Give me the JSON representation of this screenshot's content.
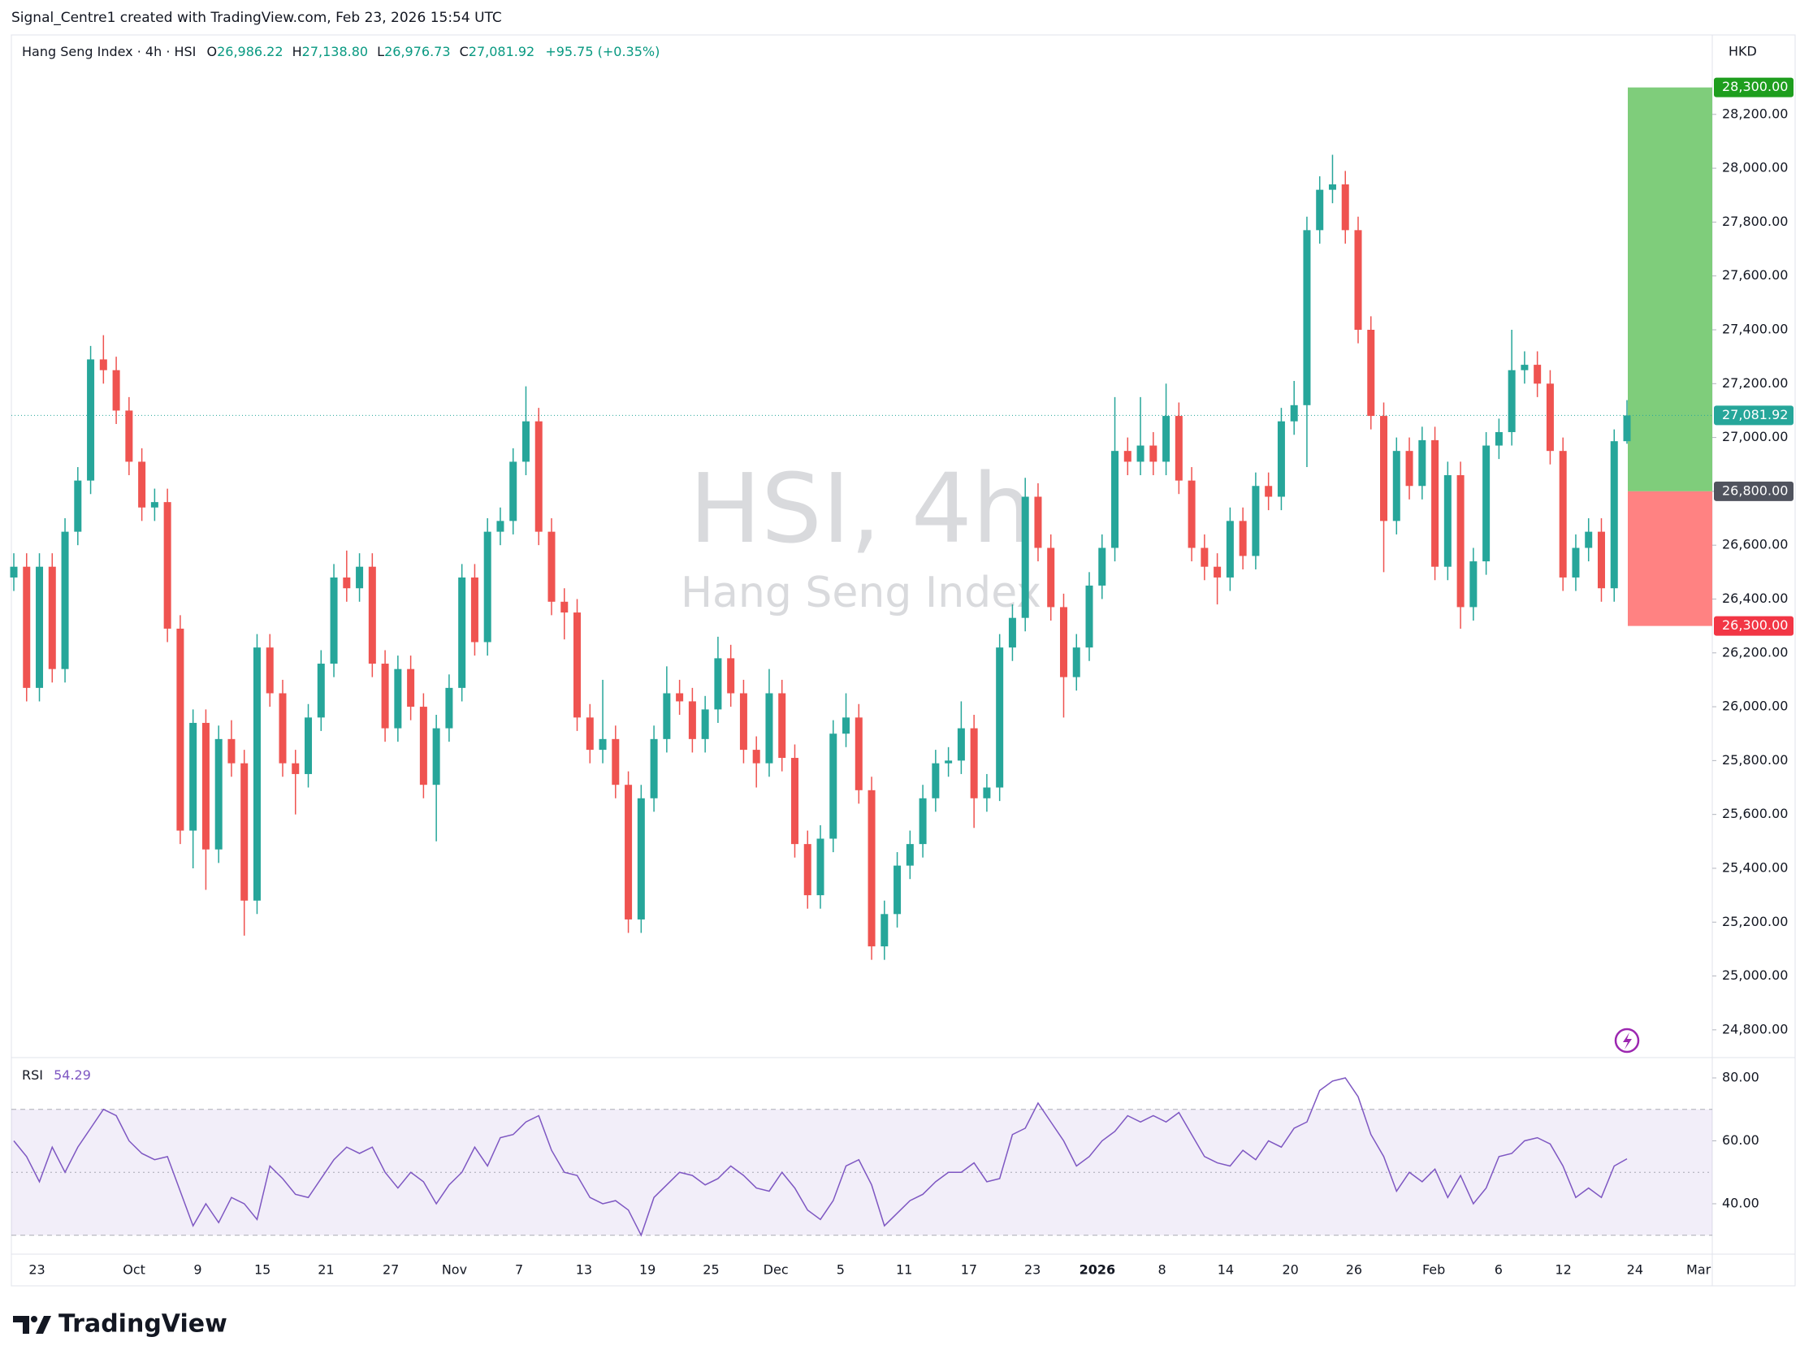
{
  "header": {
    "credit": "Signal_Centre1 created with TradingView.com, Feb 23, 2026 15:54 UTC",
    "footer_logo": "TradingView"
  },
  "chart_data": {
    "type": "candlestick",
    "symbol": "Hang Seng Index · 4h · HSI",
    "legend": {
      "o_prefix": "O",
      "open": "26,986.22",
      "h_prefix": "H",
      "high": "27,138.80",
      "l_prefix": "L",
      "low": "26,976.73",
      "c_prefix": "C",
      "close": "27,081.92",
      "change": "+95.75 (+0.35%)"
    },
    "watermark": "HSI, 4h",
    "watermark_sub": "Hang Seng Index",
    "currency": "HKD",
    "up_color": "#26a69a",
    "down_color": "#ef5350",
    "ylim": [
      24703,
      28483
    ],
    "yticks": [
      {
        "value": 24800,
        "label": "24,800.00"
      },
      {
        "value": 25000,
        "label": "25,000.00"
      },
      {
        "value": 25200,
        "label": "25,200.00"
      },
      {
        "value": 25400,
        "label": "25,400.00"
      },
      {
        "value": 25600,
        "label": "25,600.00"
      },
      {
        "value": 25800,
        "label": "25,800.00"
      },
      {
        "value": 26000,
        "label": "26,000.00"
      },
      {
        "value": 26200,
        "label": "26,200.00"
      },
      {
        "value": 26400,
        "label": "26,400.00"
      },
      {
        "value": 26600,
        "label": "26,600.00"
      },
      {
        "value": 26800,
        "label": "26,800.00"
      },
      {
        "value": 27000,
        "label": "27,000.00"
      },
      {
        "value": 27200,
        "label": "27,200.00"
      },
      {
        "value": 27400,
        "label": "27,400.00"
      },
      {
        "value": 27600,
        "label": "27,600.00"
      },
      {
        "value": 27800,
        "label": "27,800.00"
      },
      {
        "value": 28000,
        "label": "28,000.00"
      },
      {
        "value": 28200,
        "label": "28,200.00"
      }
    ],
    "xticks": [
      "23",
      "Oct",
      "9",
      "15",
      "21",
      "27",
      "Nov",
      "7",
      "13",
      "19",
      "25",
      "Dec",
      "5",
      "11",
      "17",
      "23",
      "2026",
      "8",
      "14",
      "20",
      "26",
      "Feb",
      "6",
      "12",
      "24",
      "Mar"
    ],
    "price_line": {
      "value": 27081.92,
      "label": "27,081.92"
    },
    "position": {
      "target": {
        "value": 28300,
        "label": "28,300.00",
        "color": "#7fcd7b"
      },
      "entry": {
        "value": 26800,
        "label": "26,800.00"
      },
      "stop": {
        "value": 26300,
        "label": "26,300.00",
        "color": "#ff8282"
      }
    },
    "candles": [
      [
        26480,
        26570,
        26430,
        26520
      ],
      [
        26520,
        26570,
        26020,
        26070
      ],
      [
        26070,
        26570,
        26020,
        26520
      ],
      [
        26520,
        26570,
        26090,
        26140
      ],
      [
        26140,
        26700,
        26090,
        26650
      ],
      [
        26650,
        26890,
        26600,
        26840
      ],
      [
        26840,
        27340,
        26790,
        27290
      ],
      [
        27290,
        27380,
        27200,
        27250
      ],
      [
        27250,
        27300,
        27050,
        27100
      ],
      [
        27100,
        27150,
        26860,
        26910
      ],
      [
        26910,
        26960,
        26690,
        26740
      ],
      [
        26740,
        26810,
        26690,
        26760
      ],
      [
        26760,
        26810,
        26240,
        26290
      ],
      [
        26290,
        26340,
        25490,
        25540
      ],
      [
        25540,
        25990,
        25400,
        25940
      ],
      [
        25940,
        25990,
        25320,
        25470
      ],
      [
        25470,
        25930,
        25420,
        25880
      ],
      [
        25880,
        25950,
        25740,
        25790
      ],
      [
        25790,
        25840,
        25150,
        25280
      ],
      [
        25280,
        26270,
        25230,
        26220
      ],
      [
        26220,
        26270,
        26000,
        26050
      ],
      [
        26050,
        26100,
        25740,
        25790
      ],
      [
        25790,
        25840,
        25600,
        25750
      ],
      [
        25750,
        26010,
        25700,
        25960
      ],
      [
        25960,
        26210,
        25910,
        26160
      ],
      [
        26160,
        26530,
        26110,
        26480
      ],
      [
        26480,
        26580,
        26390,
        26440
      ],
      [
        26440,
        26570,
        26390,
        26520
      ],
      [
        26520,
        26570,
        26110,
        26160
      ],
      [
        26160,
        26210,
        25870,
        25920
      ],
      [
        25920,
        26190,
        25870,
        26140
      ],
      [
        26140,
        26190,
        25950,
        26000
      ],
      [
        26000,
        26050,
        25660,
        25710
      ],
      [
        25710,
        25970,
        25500,
        25920
      ],
      [
        25920,
        26120,
        25870,
        26070
      ],
      [
        26070,
        26530,
        26020,
        26480
      ],
      [
        26480,
        26530,
        26190,
        26240
      ],
      [
        26240,
        26700,
        26190,
        26650
      ],
      [
        26650,
        26740,
        26600,
        26690
      ],
      [
        26690,
        26960,
        26640,
        26910
      ],
      [
        26910,
        27190,
        26860,
        27060
      ],
      [
        27060,
        27110,
        26600,
        26650
      ],
      [
        26650,
        26700,
        26340,
        26390
      ],
      [
        26390,
        26440,
        26250,
        26350
      ],
      [
        26350,
        26400,
        25910,
        25960
      ],
      [
        25960,
        26010,
        25790,
        25840
      ],
      [
        25840,
        26100,
        25790,
        25880
      ],
      [
        25880,
        25930,
        25660,
        25710
      ],
      [
        25710,
        25760,
        25160,
        25210
      ],
      [
        25210,
        25710,
        25160,
        25660
      ],
      [
        25660,
        25930,
        25610,
        25880
      ],
      [
        25880,
        26150,
        25830,
        26050
      ],
      [
        26050,
        26100,
        25970,
        26020
      ],
      [
        26020,
        26070,
        25830,
        25880
      ],
      [
        25880,
        26040,
        25830,
        25990
      ],
      [
        25990,
        26260,
        25940,
        26180
      ],
      [
        26180,
        26230,
        26000,
        26050
      ],
      [
        26050,
        26100,
        25790,
        25840
      ],
      [
        25840,
        25890,
        25700,
        25790
      ],
      [
        25790,
        26140,
        25740,
        26050
      ],
      [
        26050,
        26100,
        25760,
        25810
      ],
      [
        25810,
        25860,
        25440,
        25490
      ],
      [
        25490,
        25540,
        25250,
        25300
      ],
      [
        25300,
        25560,
        25250,
        25510
      ],
      [
        25510,
        25950,
        25460,
        25900
      ],
      [
        25900,
        26050,
        25850,
        25960
      ],
      [
        25960,
        26010,
        25640,
        25690
      ],
      [
        25690,
        25740,
        25060,
        25110
      ],
      [
        25110,
        25280,
        25060,
        25230
      ],
      [
        25230,
        25460,
        25180,
        25410
      ],
      [
        25410,
        25540,
        25360,
        25490
      ],
      [
        25490,
        25710,
        25440,
        25660
      ],
      [
        25660,
        25840,
        25610,
        25790
      ],
      [
        25790,
        25850,
        25740,
        25800
      ],
      [
        25800,
        26020,
        25750,
        25920
      ],
      [
        25920,
        25970,
        25550,
        25660
      ],
      [
        25660,
        25750,
        25610,
        25700
      ],
      [
        25700,
        26270,
        25650,
        26220
      ],
      [
        26220,
        26380,
        26170,
        26330
      ],
      [
        26330,
        26850,
        26280,
        26780
      ],
      [
        26780,
        26830,
        26540,
        26590
      ],
      [
        26590,
        26640,
        26320,
        26370
      ],
      [
        26370,
        26420,
        25960,
        26110
      ],
      [
        26110,
        26270,
        26060,
        26220
      ],
      [
        26220,
        26500,
        26170,
        26450
      ],
      [
        26450,
        26640,
        26400,
        26590
      ],
      [
        26590,
        27150,
        26540,
        26950
      ],
      [
        26950,
        27000,
        26860,
        26910
      ],
      [
        26910,
        27150,
        26860,
        26970
      ],
      [
        26970,
        27020,
        26860,
        26910
      ],
      [
        26910,
        27200,
        26860,
        27080
      ],
      [
        27080,
        27130,
        26790,
        26840
      ],
      [
        26840,
        26890,
        26540,
        26590
      ],
      [
        26590,
        26640,
        26470,
        26520
      ],
      [
        26520,
        26570,
        26380,
        26480
      ],
      [
        26480,
        26740,
        26430,
        26690
      ],
      [
        26690,
        26740,
        26510,
        26560
      ],
      [
        26560,
        26870,
        26510,
        26820
      ],
      [
        26820,
        26870,
        26730,
        26780
      ],
      [
        26780,
        27110,
        26730,
        27060
      ],
      [
        27060,
        27210,
        27010,
        27120
      ],
      [
        27120,
        27820,
        26890,
        27770
      ],
      [
        27770,
        27970,
        27720,
        27920
      ],
      [
        27920,
        28050,
        27870,
        27940
      ],
      [
        27940,
        27990,
        27720,
        27770
      ],
      [
        27770,
        27820,
        27350,
        27400
      ],
      [
        27400,
        27450,
        27030,
        27080
      ],
      [
        27080,
        27130,
        26500,
        26690
      ],
      [
        26690,
        27000,
        26640,
        26950
      ],
      [
        26950,
        27000,
        26770,
        26820
      ],
      [
        26820,
        27040,
        26770,
        26990
      ],
      [
        26990,
        27040,
        26470,
        26520
      ],
      [
        26520,
        26910,
        26470,
        26860
      ],
      [
        26860,
        26910,
        26290,
        26370
      ],
      [
        26370,
        26590,
        26320,
        26540
      ],
      [
        26540,
        27020,
        26490,
        26970
      ],
      [
        26970,
        27070,
        26920,
        27020
      ],
      [
        27020,
        27400,
        26970,
        27250
      ],
      [
        27250,
        27320,
        27200,
        27270
      ],
      [
        27270,
        27320,
        27150,
        27200
      ],
      [
        27200,
        27250,
        26900,
        26950
      ],
      [
        26950,
        27000,
        26430,
        26480
      ],
      [
        26480,
        26640,
        26430,
        26590
      ],
      [
        26590,
        26700,
        26540,
        26650
      ],
      [
        26650,
        26700,
        26390,
        26440
      ],
      [
        26440,
        27030,
        26390,
        26986.17
      ],
      [
        26986.22,
        27138.8,
        26976.73,
        27081.92
      ]
    ],
    "rsi": {
      "name": "RSI",
      "value_label": "54.29",
      "color": "#7e57c2",
      "ylim": [
        24.5,
        86.2
      ],
      "yticks": [
        {
          "value": 40,
          "label": "40.00"
        },
        {
          "value": 60,
          "label": "60.00"
        },
        {
          "value": 80,
          "label": "80.00"
        }
      ],
      "bands": [
        70,
        50,
        30
      ],
      "values": [
        60,
        55,
        47,
        58,
        50,
        58,
        64,
        70,
        68,
        60,
        56,
        54,
        55,
        44,
        33,
        40,
        34,
        42,
        40,
        35,
        52,
        48,
        43,
        42,
        48,
        54,
        58,
        56,
        58,
        50,
        45,
        50,
        47,
        40,
        46,
        50,
        58,
        52,
        61,
        62,
        66,
        68,
        57,
        50,
        49,
        42,
        40,
        41,
        38,
        30,
        42,
        46,
        50,
        49,
        46,
        48,
        52,
        49,
        45,
        44,
        50,
        45,
        38,
        35,
        41,
        52,
        54,
        46,
        33,
        37,
        41,
        43,
        47,
        50,
        50,
        53,
        47,
        48,
        62,
        64,
        72,
        66,
        60,
        52,
        55,
        60,
        63,
        68,
        66,
        68,
        66,
        69,
        62,
        55,
        53,
        52,
        57,
        54,
        60,
        58,
        64,
        66,
        76,
        79,
        80,
        74,
        62,
        55,
        44,
        50,
        47,
        51,
        42,
        49,
        40,
        45,
        55,
        56,
        60,
        61,
        59,
        52,
        42,
        45,
        42,
        52,
        54.29
      ]
    }
  }
}
